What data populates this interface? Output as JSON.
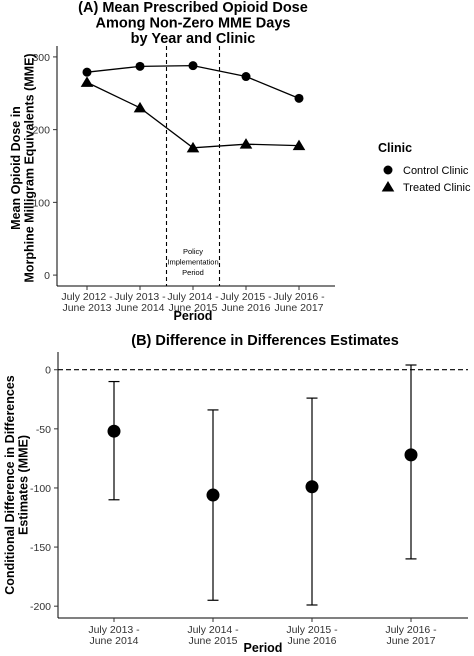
{
  "chart_data": [
    {
      "type": "line",
      "title": "(A) Mean Prescribed Opioid Dose\nAmong Non-Zero MME Days\nby Year and Clinic",
      "xlabel": "Period",
      "ylabel": "Mean Opioid Dose in\nMorphine Milligram Equivalents (MME)",
      "categories": [
        "July 2012 -\nJune 2013",
        "July 2013 -\nJune 2014",
        "July 2014 -\nJune 2015",
        "July 2015 -\nJune 2016",
        "July 2016 -\nJune 2017"
      ],
      "ylim": [
        -15,
        315
      ],
      "yticks": [
        0,
        100,
        200,
        300
      ],
      "series": [
        {
          "name": "Control Clinic",
          "marker": "circle",
          "values": [
            279,
            287,
            288,
            273,
            243
          ]
        },
        {
          "name": "Treated Clinic",
          "marker": "triangle",
          "values": [
            265,
            230,
            175,
            180,
            178
          ]
        }
      ],
      "legend": {
        "title": "Clinic",
        "position": "right"
      },
      "annotation": {
        "text": "Policy\nImplementation\nPeriod",
        "x_start": 1.5,
        "x_end": 2.5,
        "style": "dashed vertical lines"
      },
      "grid": false
    },
    {
      "type": "scatter",
      "title": "(B) Difference in Differences Estimates",
      "xlabel": "Period",
      "ylabel": "Conditional Difference in Differences\nEstimates (MME)",
      "categories": [
        "July 2013 -\nJune 2014",
        "July 2014 -\nJune 2015",
        "July 2015 -\nJune 2016",
        "July 2016 -\nJune 2017"
      ],
      "ylim": [
        -210,
        15
      ],
      "yticks": [
        0,
        -50,
        -100,
        -150,
        -200
      ],
      "estimates": [
        -52,
        -106,
        -99,
        -72
      ],
      "ci_lower": [
        -110,
        -195,
        -199,
        -160
      ],
      "ci_upper": [
        -10,
        -34,
        -24,
        4
      ],
      "reference_line": {
        "y": 0,
        "style": "dashed"
      },
      "grid": false
    }
  ]
}
